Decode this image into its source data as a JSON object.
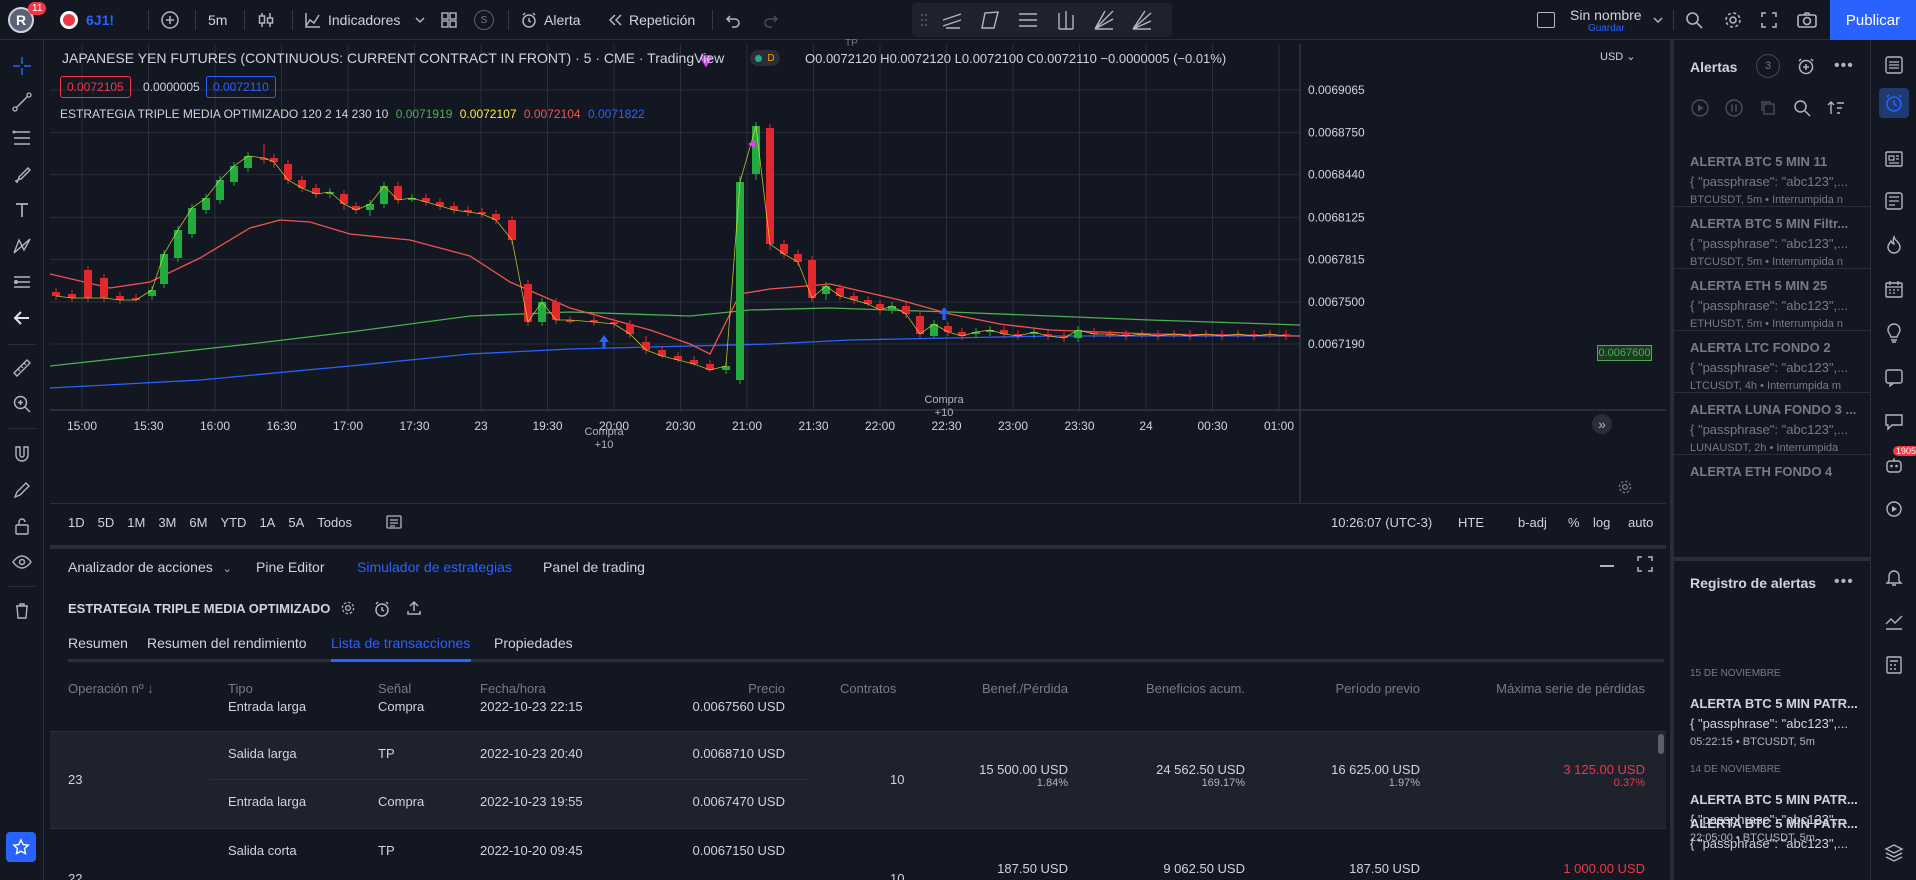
{
  "topbar": {
    "avatar_letter": "R",
    "notif_count": "11",
    "symbol": "6J1!",
    "interval": "5m",
    "indicators_label": "Indicadores",
    "alert_label": "Alerta",
    "replay_label": "Repetición",
    "layout_name": "Sin nombre",
    "layout_status": "Guardar",
    "publish_label": "Publicar",
    "s_badge": "S"
  },
  "chart": {
    "title": "JAPANESE YEN FUTURES (CONTINUOUS: CURRENT CONTRACT IN FRONT) · 5 · CME · TradingView",
    "d_badge": "D",
    "ohlc": "O0.0072120 H0.0072120 L0.0072100 C0.0072110 −0.0000005 (−0.01%)",
    "bid": "0.0072105",
    "spread": "0.0000005",
    "ask": "0.0072110",
    "strategy_name": "ESTRATEGIA TRIPLE MEDIA OPTIMIZADO 120 2 14 230 10",
    "strategy_values": [
      "0.0071919",
      "0.0072107",
      "0.0072104",
      "0.0071822"
    ],
    "currency": "USD",
    "price_ticks": [
      "0.0069065",
      "0.0068750",
      "0.0068440",
      "0.0068125",
      "0.0067815",
      "0.0067500",
      "0.0067190"
    ],
    "current_price": "0.0067600",
    "time_ticks": [
      "15:00",
      "15:30",
      "16:00",
      "16:30",
      "17:00",
      "17:30",
      "23",
      "19:30",
      "20:00",
      "20:30",
      "21:00",
      "21:30",
      "22:00",
      "22:30",
      "23:00",
      "23:30",
      "24",
      "00:30",
      "01:00"
    ],
    "marker_buy1": "Compra",
    "marker_buy1_qty": "+10",
    "marker_buy2": "Compra",
    "marker_buy2_qty": "+10",
    "marker_tp": "TP",
    "colors": {
      "up": "#22ab3e",
      "down": "#e0282e",
      "ma_red": "#f05350",
      "ma_green": "#4caf50",
      "ma_blue": "#2962ff",
      "ma_yellow": "#e6e631"
    }
  },
  "rangebar": {
    "ranges": [
      "1D",
      "5D",
      "1M",
      "3M",
      "6M",
      "YTD",
      "1A",
      "5A",
      "Todos"
    ],
    "clock": "10:26:07 (UTC-3)",
    "session": "HTE",
    "badj": "b-adj",
    "pct": "%",
    "log": "log",
    "auto": "auto"
  },
  "bottom": {
    "tabs": [
      "Analizador de acciones",
      "Pine Editor",
      "Simulador de estrategias",
      "Panel de trading"
    ],
    "strategy_title": "ESTRATEGIA TRIPLE MEDIA OPTIMIZADO",
    "subtabs": [
      "Resumen",
      "Resumen del rendimiento",
      "Lista de transacciones",
      "Propiedades"
    ],
    "headers": [
      "Operación nº ↓",
      "Tipo",
      "Señal",
      "Fecha/hora",
      "Precio",
      "Contratos",
      "Benef./Pérdida",
      "Beneficios acum.",
      "Período previo",
      "Máxima serie de pérdidas"
    ],
    "partial_row": {
      "tipo": "Entrada larga",
      "senal": "Compra",
      "fecha": "2022-10-23 22:15",
      "precio": "0.0067560 USD"
    },
    "trades": [
      {
        "num": "23",
        "exit": {
          "tipo": "Salida larga",
          "senal": "TP",
          "fecha": "2022-10-23 20:40",
          "precio": "0.0068710 USD"
        },
        "entry": {
          "tipo": "Entrada larga",
          "senal": "Compra",
          "fecha": "2022-10-23 19:55",
          "precio": "0.0067470 USD"
        },
        "contratos": "10",
        "pl": "15 500.00 USD",
        "pl_pct": "1.84%",
        "cum": "24 562.50 USD",
        "cum_pct": "169.17%",
        "runup": "16 625.00 USD",
        "runup_pct": "1.97%",
        "dd": "3 125.00 USD",
        "dd_pct": "0.37%"
      },
      {
        "num": "22",
        "exit": {
          "tipo": "Salida corta",
          "senal": "TP",
          "fecha": "2022-10-20 09:45",
          "precio": "0.0067150 USD"
        },
        "contratos": "10",
        "pl": "187.50 USD",
        "cum": "9 062.50 USD",
        "runup": "187.50 USD",
        "dd": "1 000.00 USD"
      }
    ]
  },
  "alerts": {
    "title": "Alertas",
    "count": "3",
    "items": [
      {
        "name": "ALERTA BTC 5 MIN 11",
        "msg": "{ \"passphrase\": \"abc123\",...",
        "symbol": "BTCUSDT, 5m",
        "status": "Interrumpida n"
      },
      {
        "name": "ALERTA BTC 5 MIN Filtr...",
        "msg": "{ \"passphrase\": \"abc123\",...",
        "symbol": "BTCUSDT, 5m",
        "status": "Interrumpida n"
      },
      {
        "name": "ALERTA ETH 5 MIN 25",
        "msg": "{ \"passphrase\": \"abc123\",...",
        "symbol": "ETHUSDT, 5m",
        "status": "Interrumpida n"
      },
      {
        "name": "ALERTA LTC FONDO 2",
        "msg": "{ \"passphrase\": \"abc123\",...",
        "symbol": "LTCUSDT, 4h",
        "status": "Interrumpida m"
      },
      {
        "name": "ALERTA LUNA FONDO 3 ...",
        "msg": "{ \"passphrase\": \"abc123\",...",
        "symbol": "LUNAUSDT, 2h",
        "status": "Interrumpida"
      },
      {
        "name": "ALERTA ETH FONDO 4",
        "msg": "",
        "symbol": "",
        "status": ""
      }
    ],
    "log_title": "Registro de alertas",
    "log_groups": [
      {
        "date": "15 DE NOVIEMBRE",
        "name": "ALERTA BTC 5 MIN PATR...",
        "msg": "{ \"passphrase\": \"abc123\",...",
        "time": "05:22:15",
        "symbol": "BTCUSDT, 5m"
      },
      {
        "date": "14 DE NOVIEMBRE",
        "name": "ALERTA BTC 5 MIN PATR...",
        "msg": "{ \"passphrase\": \"abc123\",...",
        "time": "22:05:00",
        "symbol": "BTCUSDT, 5m"
      },
      {
        "date": "",
        "name": "ALERTA BTC 5 MIN PATR...",
        "msg": "{ \"passphrase\": \"abc123\",...",
        "time": "",
        "symbol": ""
      }
    ]
  },
  "rightbar": {
    "badge": "1905"
  }
}
